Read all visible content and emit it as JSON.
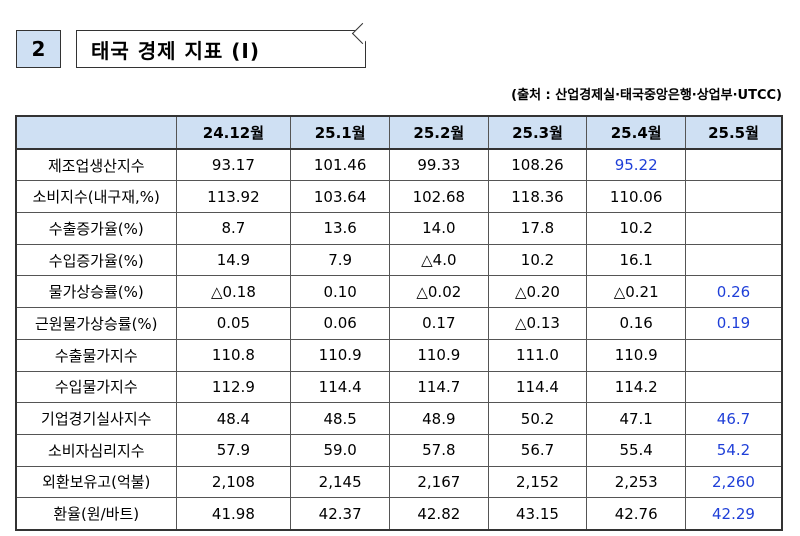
{
  "header": {
    "section_number": "2",
    "title": "태국 경제 지표 (Ⅰ)",
    "source": "(출처 : 산업경제실·태국중앙은행·상업부·UTCC)"
  },
  "table": {
    "corner": "",
    "columns": [
      "24.12월",
      "25.1월",
      "25.2월",
      "25.3월",
      "25.4월",
      "25.5월"
    ],
    "rows": [
      {
        "label": "제조업생산지수",
        "values": [
          "93.17",
          "101.46",
          "99.33",
          "108.26",
          "95.22",
          ""
        ],
        "blue": [
          4
        ]
      },
      {
        "label": "소비지수(내구재,%)",
        "values": [
          "113.92",
          "103.64",
          "102.68",
          "118.36",
          "110.06",
          ""
        ],
        "blue": []
      },
      {
        "label": "수출증가율(%)",
        "values": [
          "8.7",
          "13.6",
          "14.0",
          "17.8",
          "10.2",
          ""
        ],
        "blue": []
      },
      {
        "label": "수입증가율(%)",
        "values": [
          "14.9",
          "7.9",
          "△4.0",
          "10.2",
          "16.1",
          ""
        ],
        "blue": []
      },
      {
        "label": "물가상승률(%)",
        "values": [
          "△0.18",
          "0.10",
          "△0.02",
          "△0.20",
          "△0.21",
          "0.26"
        ],
        "blue": [
          5
        ]
      },
      {
        "label": "근원물가상승률(%)",
        "values": [
          "0.05",
          "0.06",
          "0.17",
          "△0.13",
          "0.16",
          "0.19"
        ],
        "blue": [
          5
        ]
      },
      {
        "label": "수출물가지수",
        "values": [
          "110.8",
          "110.9",
          "110.9",
          "111.0",
          "110.9",
          ""
        ],
        "blue": []
      },
      {
        "label": "수입물가지수",
        "values": [
          "112.9",
          "114.4",
          "114.7",
          "114.4",
          "114.2",
          ""
        ],
        "blue": []
      },
      {
        "label": "기업경기실사지수",
        "values": [
          "48.4",
          "48.5",
          "48.9",
          "50.2",
          "47.1",
          "46.7"
        ],
        "blue": [
          5
        ]
      },
      {
        "label": "소비자심리지수",
        "values": [
          "57.9",
          "59.0",
          "57.8",
          "56.7",
          "55.4",
          "54.2"
        ],
        "blue": [
          5
        ]
      },
      {
        "label": "외환보유고(억불)",
        "values": [
          "2,108",
          "2,145",
          "2,167",
          "2,152",
          "2,253",
          "2,260"
        ],
        "blue": [
          5
        ]
      },
      {
        "label": "환율(원/바트)",
        "values": [
          "41.98",
          "42.37",
          "42.82",
          "43.15",
          "42.76",
          "42.29"
        ],
        "blue": [
          5
        ]
      }
    ]
  },
  "colors": {
    "header_bg": "#cfe0f3",
    "highlight_text": "#1f3fd8"
  }
}
